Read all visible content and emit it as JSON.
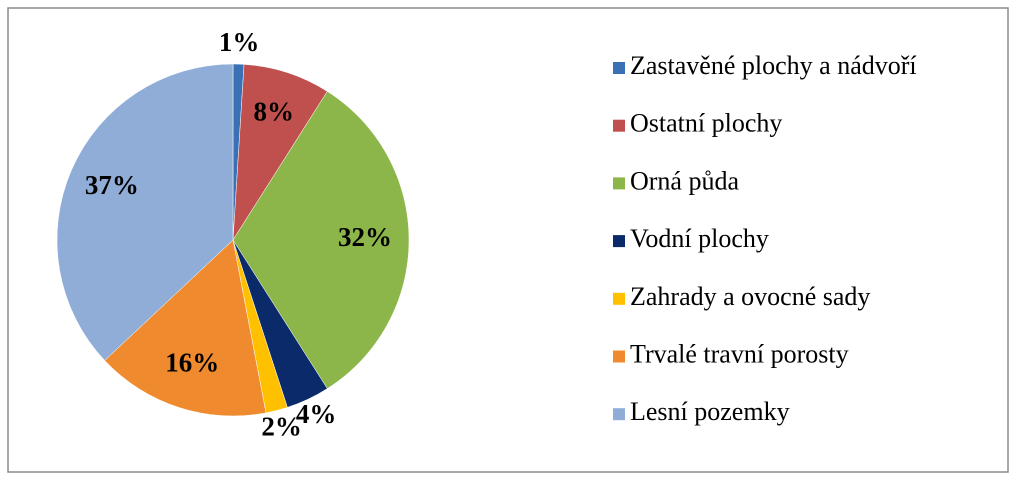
{
  "chart_data": {
    "type": "pie",
    "categories": [
      "Zastavěné plochy a nádvoří",
      "Ostatní plochy",
      "Orná půda",
      "Vodní plochy",
      "Zahrady a ovocné sady",
      "Trvalé travní porosty",
      "Lesní pozemky"
    ],
    "values": [
      1,
      8,
      32,
      4,
      2,
      16,
      37
    ],
    "value_labels": [
      "1%",
      "8%",
      "32%",
      "4%",
      "2%",
      "16%",
      "37%"
    ],
    "colors": [
      "#3a70b5",
      "#c0504d",
      "#8db64a",
      "#0b2a6a",
      "#ffc000",
      "#ef8a2e",
      "#8fadd6"
    ],
    "legend": "right"
  }
}
